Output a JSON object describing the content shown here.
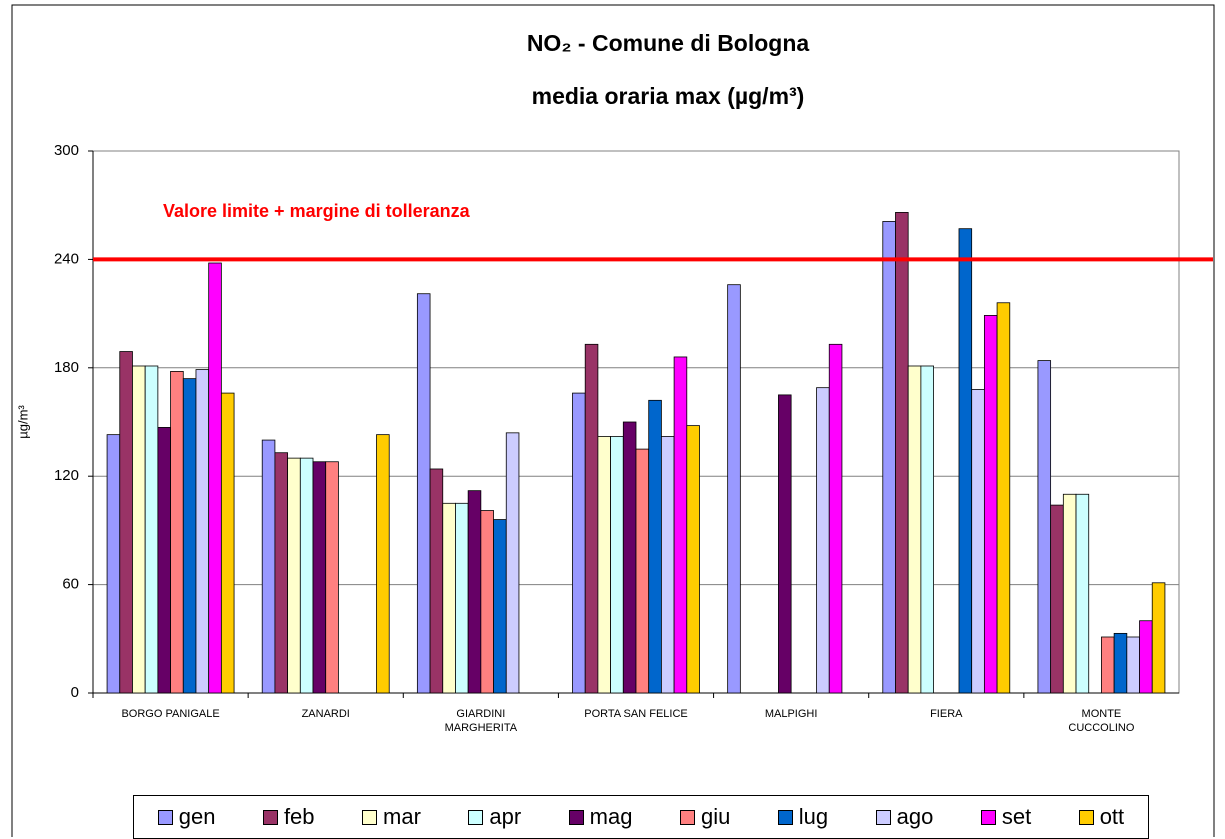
{
  "chart_data": {
    "type": "bar",
    "title": "NO₂ - Comune di Bologna",
    "subtitle": "media oraria max  (µg/m³)",
    "y_label": "µg/m³",
    "categories": [
      "BORGO PANIGALE",
      "ZANARDI",
      "GIARDINI\nMARGHERITA",
      "PORTA SAN FELICE",
      "MALPIGHI",
      "FIERA",
      "MONTE\nCUCCOLINO"
    ],
    "series": [
      {
        "name": "gen",
        "color": "#9999ff",
        "values": [
          143,
          140,
          221,
          166,
          226,
          261,
          184
        ]
      },
      {
        "name": "feb",
        "color": "#993366",
        "values": [
          189,
          133,
          124,
          193,
          null,
          266,
          104
        ]
      },
      {
        "name": "mar",
        "color": "#ffffcc",
        "values": [
          181,
          130,
          105,
          142,
          null,
          181,
          110
        ]
      },
      {
        "name": "apr",
        "color": "#ccffff",
        "values": [
          181,
          130,
          105,
          142,
          null,
          181,
          110
        ]
      },
      {
        "name": "mag",
        "color": "#660066",
        "values": [
          147,
          128,
          112,
          150,
          165,
          null,
          null
        ]
      },
      {
        "name": "giu",
        "color": "#ff8080",
        "values": [
          178,
          128,
          101,
          135,
          null,
          null,
          31
        ]
      },
      {
        "name": "lug",
        "color": "#0066cc",
        "values": [
          174,
          null,
          96,
          162,
          null,
          257,
          33
        ]
      },
      {
        "name": "ago",
        "color": "#ccccff",
        "values": [
          179,
          null,
          144,
          142,
          169,
          168,
          31
        ]
      },
      {
        "name": "set",
        "color": "#ff00ff",
        "values": [
          238,
          null,
          null,
          186,
          193,
          209,
          40
        ]
      },
      {
        "name": "ott",
        "color": "#ffcc00",
        "values": [
          166,
          143,
          null,
          148,
          null,
          216,
          61
        ]
      }
    ],
    "limit": {
      "value": 240,
      "label": "Valore limite + margine di tolleranza",
      "color": "#ff0000"
    },
    "ylim": [
      0,
      300
    ],
    "yticks": [
      0,
      60,
      120,
      180,
      240,
      300
    ],
    "grid": true,
    "legend": "bottom"
  }
}
